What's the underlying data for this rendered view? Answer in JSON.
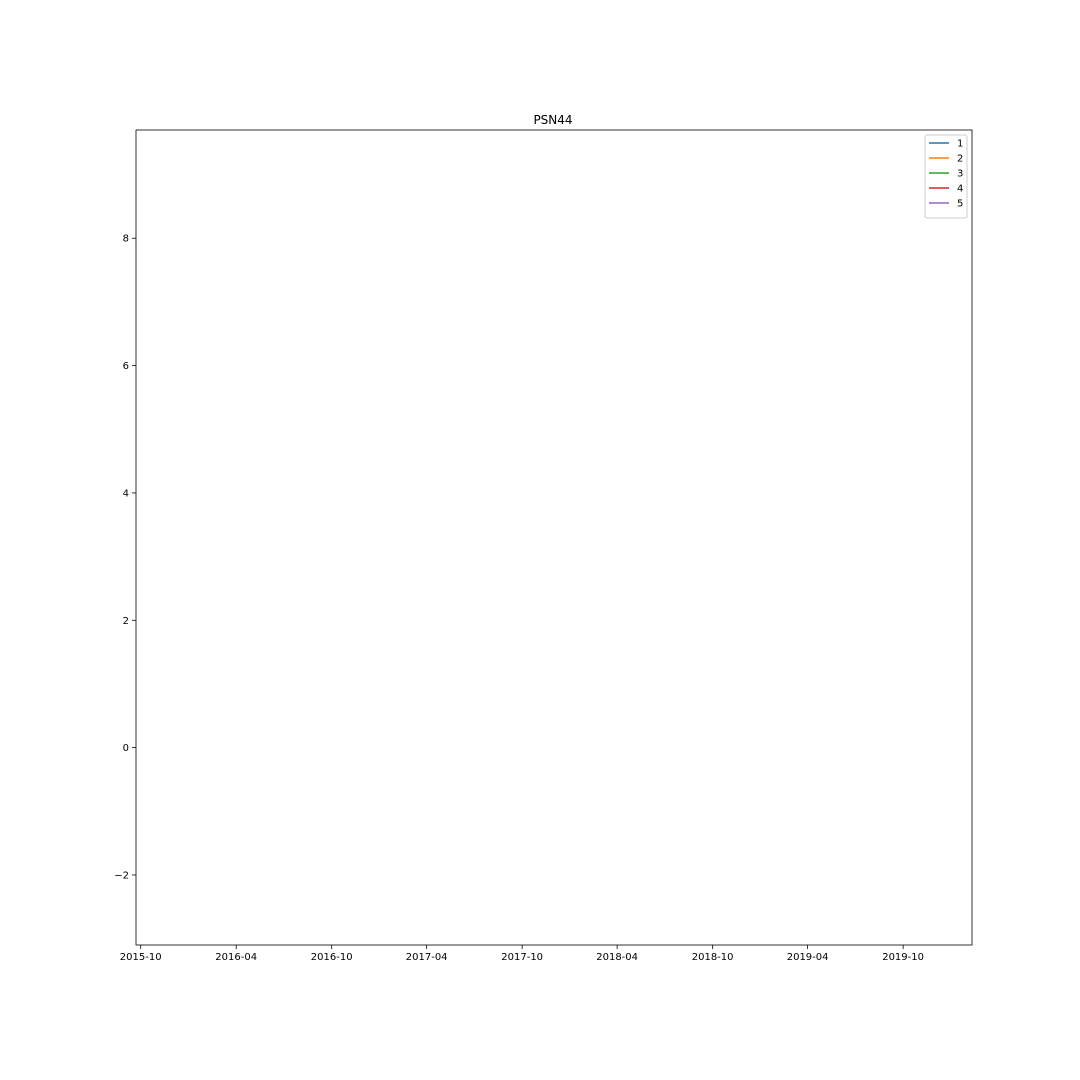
{
  "chart_data": {
    "type": "line",
    "title": "PSN44",
    "xlabel": "",
    "ylabel": "",
    "x_axis_type": "date",
    "xlim": [
      "2015-09-22",
      "2020-02-10"
    ],
    "ylim": [
      -3.1,
      9.7
    ],
    "x_ticks": [
      "2015-10",
      "2016-04",
      "2016-10",
      "2017-04",
      "2017-10",
      "2018-04",
      "2018-10",
      "2019-04",
      "2019-10"
    ],
    "y_ticks": [
      -2,
      0,
      2,
      4,
      6,
      8
    ],
    "y_tick_labels": [
      "−2",
      "0",
      "2",
      "4",
      "6",
      "8"
    ],
    "grid": false,
    "legend_position": "top-right",
    "series": [
      {
        "name": "1",
        "color": "#1f77b4",
        "x": [],
        "y": []
      },
      {
        "name": "2",
        "color": "#ff7f0e",
        "x": [],
        "y": []
      },
      {
        "name": "3",
        "color": "#2ca02c",
        "x": [],
        "y": []
      },
      {
        "name": "4",
        "color": "#d62728",
        "x": [],
        "y": []
      },
      {
        "name": "5",
        "color": "#9467bd",
        "x": [],
        "y": []
      }
    ]
  }
}
